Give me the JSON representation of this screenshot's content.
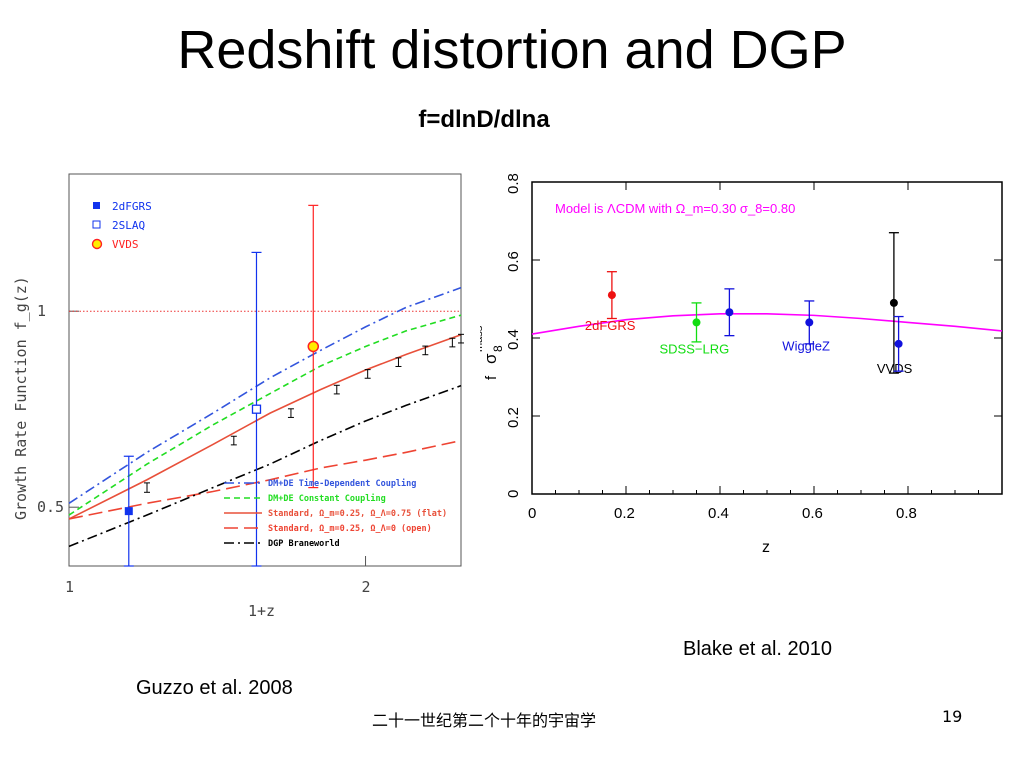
{
  "slide": {
    "title": "Redshift distortion and DGP",
    "subtitle": "f=dlnD/dlna",
    "credit_left": "Guzzo et al. 2008",
    "credit_right": "Blake et al. 2010",
    "footer_text": "二十一世纪第二个十年的宇宙学",
    "page_number": "19"
  },
  "colors": {
    "blue_dashdot": "#3355dd",
    "green_dashed": "#22dd22",
    "red_solid": "#e8503a",
    "red_dashed": "#ee4433",
    "black_dashdot": "#000000",
    "magenta": "#ff00ff",
    "data_red": "#ee1111",
    "data_green": "#11dd11",
    "data_blue": "#1111dd"
  },
  "chart_data": [
    {
      "type": "line",
      "ylabel": "Growth Rate Function f_g(z)",
      "xlabel": "1+z",
      "x_scale": "log",
      "xlim": [
        1,
        2.5
      ],
      "ylim": [
        0.35,
        1.35
      ],
      "x_ticks": [
        {
          "value": 1,
          "label": "1"
        },
        {
          "value": 2,
          "label": "2"
        }
      ],
      "y_ticks": [
        {
          "value": 0.5,
          "label": "0.5"
        },
        {
          "value": 1,
          "label": "1"
        }
      ],
      "reference_line": {
        "y": 1
      },
      "legend_points": [
        "2dFGRS",
        "2SLAQ",
        "VVDS"
      ],
      "legend_lines": [
        "DM+DE Time-Dependent Coupling",
        "DM+DE Constant Coupling",
        "Standard, Ω_m=0.25, Ω_Λ=0.75 (flat)",
        "Standard, Ω_m=0.25, Ω_Λ=0 (open)",
        "DGP Braneworld"
      ],
      "series": [
        {
          "name": "DM+DE Time-Dependent Coupling",
          "style": "dashdot",
          "color_key": "blue_dashdot",
          "x": [
            1.0,
            1.2,
            1.4,
            1.6,
            1.8,
            2.0,
            2.2,
            2.5
          ],
          "y": [
            0.51,
            0.64,
            0.74,
            0.83,
            0.9,
            0.96,
            1.01,
            1.06
          ]
        },
        {
          "name": "DM+DE Constant Coupling",
          "style": "dashed",
          "color_key": "green_dashed",
          "x": [
            1.0,
            1.2,
            1.4,
            1.6,
            1.8,
            2.0,
            2.2,
            2.5
          ],
          "y": [
            0.48,
            0.61,
            0.71,
            0.79,
            0.86,
            0.91,
            0.95,
            0.99
          ]
        },
        {
          "name": "Standard, Ω_m=0.25, Ω_Λ=0.75 (flat)",
          "style": "solid",
          "color_key": "red_solid",
          "x": [
            1.0,
            1.2,
            1.4,
            1.6,
            1.8,
            2.0,
            2.2,
            2.5
          ],
          "y": [
            0.47,
            0.57,
            0.66,
            0.74,
            0.8,
            0.85,
            0.89,
            0.94
          ]
        },
        {
          "name": "Standard, Ω_m=0.25, Ω_Λ=0 (open)",
          "style": "longdash",
          "color_key": "red_dashed",
          "x": [
            1.0,
            1.2,
            1.4,
            1.6,
            1.8,
            2.0,
            2.2,
            2.5
          ],
          "y": [
            0.47,
            0.51,
            0.54,
            0.57,
            0.6,
            0.62,
            0.64,
            0.67
          ]
        },
        {
          "name": "DGP Braneworld",
          "style": "dashdot",
          "color_key": "black_dashdot",
          "x": [
            1.0,
            1.2,
            1.4,
            1.6,
            1.8,
            2.0,
            2.2,
            2.5
          ],
          "y": [
            0.4,
            0.48,
            0.55,
            0.61,
            0.67,
            0.72,
            0.76,
            0.81
          ]
        }
      ],
      "forecast_points": {
        "x": [
          1.2,
          1.47,
          1.68,
          1.87,
          2.01,
          2.16,
          2.3,
          2.45,
          2.5
        ],
        "y": [
          0.55,
          0.67,
          0.74,
          0.8,
          0.84,
          0.87,
          0.9,
          0.92,
          0.93
        ],
        "err": [
          0.012,
          0.011,
          0.011,
          0.011,
          0.011,
          0.011,
          0.011,
          0.011,
          0.011
        ]
      },
      "data_points": [
        {
          "name": "2dFGRS",
          "marker": "filled-square",
          "color": "#1133ee",
          "x": 1.15,
          "y": 0.49,
          "err": 0.14
        },
        {
          "name": "2SLAQ",
          "marker": "open-square",
          "color": "#1133ee",
          "x": 1.55,
          "y": 0.75,
          "err": 0.4
        },
        {
          "name": "VVDS",
          "marker": "circle",
          "color": "#ff2222",
          "x": 1.77,
          "y": 0.91,
          "err": 0.36
        }
      ]
    },
    {
      "type": "scatter",
      "xlabel": "z",
      "ylabel": "f σ8 mass",
      "xlim": [
        0,
        1.0
      ],
      "ylim": [
        0,
        0.8
      ],
      "x_ticks": [
        0,
        0.2,
        0.4,
        0.6,
        0.8
      ],
      "y_ticks": [
        0,
        0.2,
        0.4,
        0.6,
        0.8
      ],
      "model_label": "Model is ΛCDM with Ω_m=0.30 σ_8=0.80",
      "model_curve": {
        "x": [
          0.0,
          0.1,
          0.2,
          0.3,
          0.4,
          0.5,
          0.6,
          0.7,
          0.8,
          0.9,
          1.0
        ],
        "y": [
          0.41,
          0.43,
          0.447,
          0.457,
          0.462,
          0.462,
          0.458,
          0.45,
          0.44,
          0.43,
          0.418
        ]
      },
      "data_points": [
        {
          "label": "2dFGRS",
          "color_key": "data_red",
          "z": 0.17,
          "value": 0.51,
          "err": 0.06
        },
        {
          "label": "SDSS−LRG",
          "color_key": "data_green",
          "z": 0.35,
          "value": 0.44,
          "err": 0.05
        },
        {
          "label": "",
          "color_key": "data_blue",
          "z": 0.42,
          "value": 0.466,
          "err": 0.06
        },
        {
          "label": "WiggleZ",
          "color_key": "data_blue",
          "z": 0.59,
          "value": 0.44,
          "err": 0.055
        },
        {
          "label": "VVDS",
          "color_key": "black_dashdot",
          "z": 0.77,
          "value": 0.49,
          "err": 0.18
        },
        {
          "label": "",
          "color_key": "data_blue",
          "z": 0.78,
          "value": 0.385,
          "err": 0.07
        }
      ]
    }
  ]
}
